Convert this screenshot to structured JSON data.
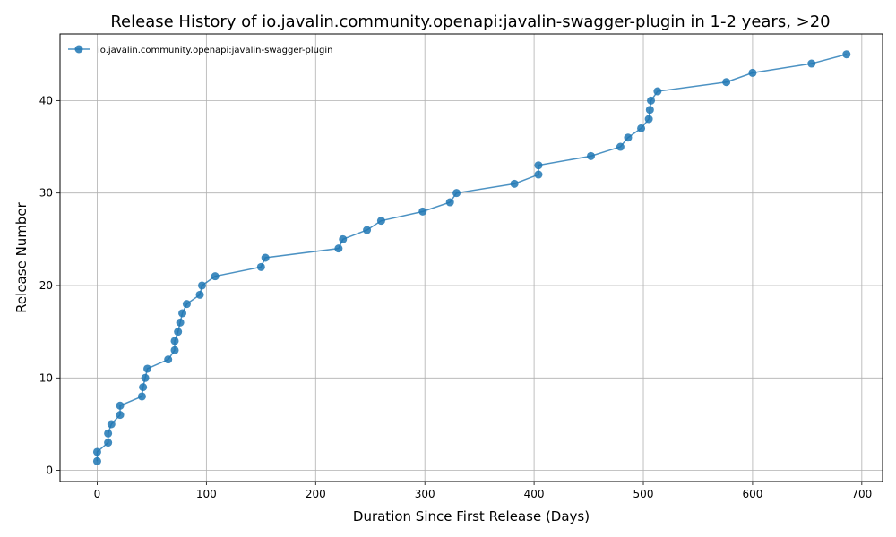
{
  "chart_data": {
    "type": "line",
    "title": "Release History of io.javalin.community.openapi:javalin-swagger-plugin in 1-2 years, >20",
    "xlabel": "Duration Since First Release (Days)",
    "ylabel": "Release Number",
    "xlim": [
      -34,
      719
    ],
    "ylim": [
      -1.2,
      47.2
    ],
    "xticks": [
      0,
      100,
      200,
      300,
      400,
      500,
      600,
      700
    ],
    "yticks": [
      0,
      10,
      20,
      30,
      40
    ],
    "grid": true,
    "legend_position": "top-left",
    "series": [
      {
        "name": "io.javalin.community.openapi:javalin-swagger-plugin",
        "color": "#1f77b4",
        "x": [
          0,
          0,
          10,
          10,
          13,
          21,
          21,
          41,
          42,
          44,
          46,
          65,
          71,
          71,
          74,
          76,
          78,
          82,
          94,
          96,
          108,
          150,
          154,
          221,
          225,
          247,
          260,
          298,
          323,
          329,
          382,
          404,
          404,
          452,
          479,
          486,
          498,
          505,
          506,
          507,
          513,
          576,
          600,
          654,
          686
        ],
        "y": [
          1,
          2,
          3,
          4,
          5,
          6,
          7,
          8,
          9,
          10,
          11,
          12,
          13,
          14,
          15,
          16,
          17,
          18,
          19,
          20,
          21,
          22,
          23,
          24,
          25,
          26,
          27,
          28,
          29,
          30,
          31,
          32,
          33,
          34,
          35,
          36,
          37,
          38,
          39,
          40,
          41,
          42,
          43,
          44,
          45
        ]
      }
    ]
  }
}
